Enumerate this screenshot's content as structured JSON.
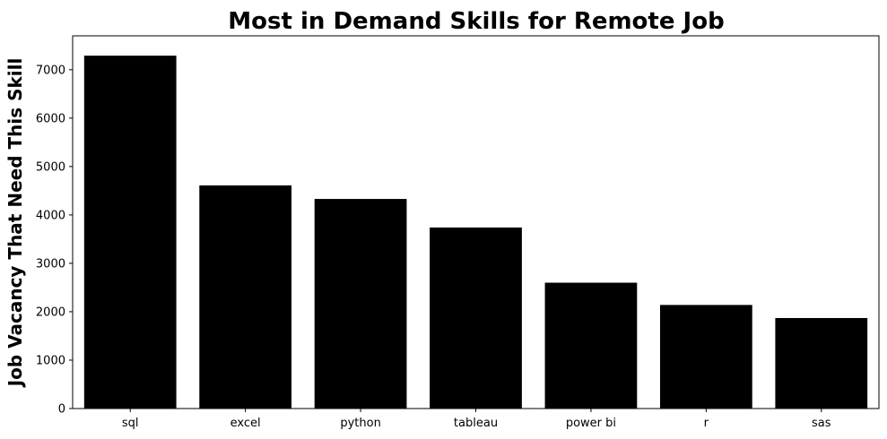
{
  "chart_data": {
    "type": "bar",
    "title": "Most in Demand Skills for Remote Job",
    "xlabel": "",
    "ylabel": "Job Vacancy That Need This Skill",
    "categories": [
      "sql",
      "excel",
      "python",
      "tableau",
      "power bi",
      "r",
      "sas"
    ],
    "values": [
      7290,
      4610,
      4330,
      3740,
      2600,
      2140,
      1870
    ],
    "ylim": [
      0,
      7700
    ],
    "yticks": [
      0,
      1000,
      2000,
      3000,
      4000,
      5000,
      6000,
      7000
    ],
    "bar_color": "#000000",
    "grid": false,
    "legend": "none"
  }
}
